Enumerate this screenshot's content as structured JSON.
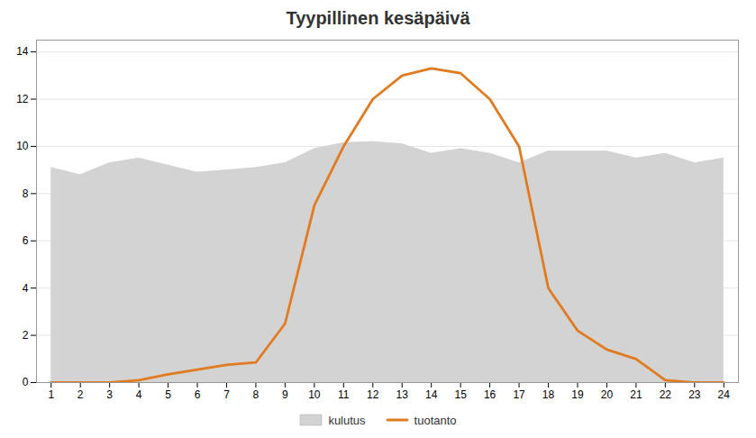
{
  "chart_data": {
    "type": "area",
    "title": "Tyypillinen kesäpäivä",
    "x": [
      1,
      2,
      3,
      4,
      5,
      6,
      7,
      8,
      9,
      10,
      11,
      12,
      13,
      14,
      15,
      16,
      17,
      18,
      19,
      20,
      21,
      22,
      23,
      24
    ],
    "series": [
      {
        "name": "kulutus",
        "type": "area",
        "color": "#d3d3d3",
        "values": [
          9.1,
          8.8,
          9.3,
          9.5,
          9.2,
          8.9,
          9.0,
          9.1,
          9.3,
          9.9,
          10.15,
          10.2,
          10.1,
          9.7,
          9.9,
          9.7,
          9.3,
          9.8,
          9.8,
          9.8,
          9.5,
          9.7,
          9.3,
          9.5
        ]
      },
      {
        "name": "tuotanto",
        "type": "line",
        "color": "#e07b20",
        "values": [
          0.0,
          0.0,
          0.0,
          0.1,
          0.35,
          0.55,
          0.75,
          0.85,
          2.5,
          7.5,
          10.0,
          12.0,
          13.0,
          13.3,
          13.1,
          12.0,
          10.0,
          4.0,
          2.2,
          1.4,
          1.0,
          0.1,
          0.0,
          0.0
        ]
      }
    ],
    "xlim": [
      0.5,
      24.5
    ],
    "xticks": [
      1,
      2,
      3,
      4,
      5,
      6,
      7,
      8,
      9,
      10,
      11,
      12,
      13,
      14,
      15,
      16,
      17,
      18,
      19,
      20,
      21,
      22,
      23,
      24
    ],
    "ylim": [
      0,
      14.5
    ],
    "yticks": [
      0,
      2,
      4,
      6,
      8,
      10,
      12,
      14
    ],
    "grid": true,
    "legend": "bottom"
  }
}
